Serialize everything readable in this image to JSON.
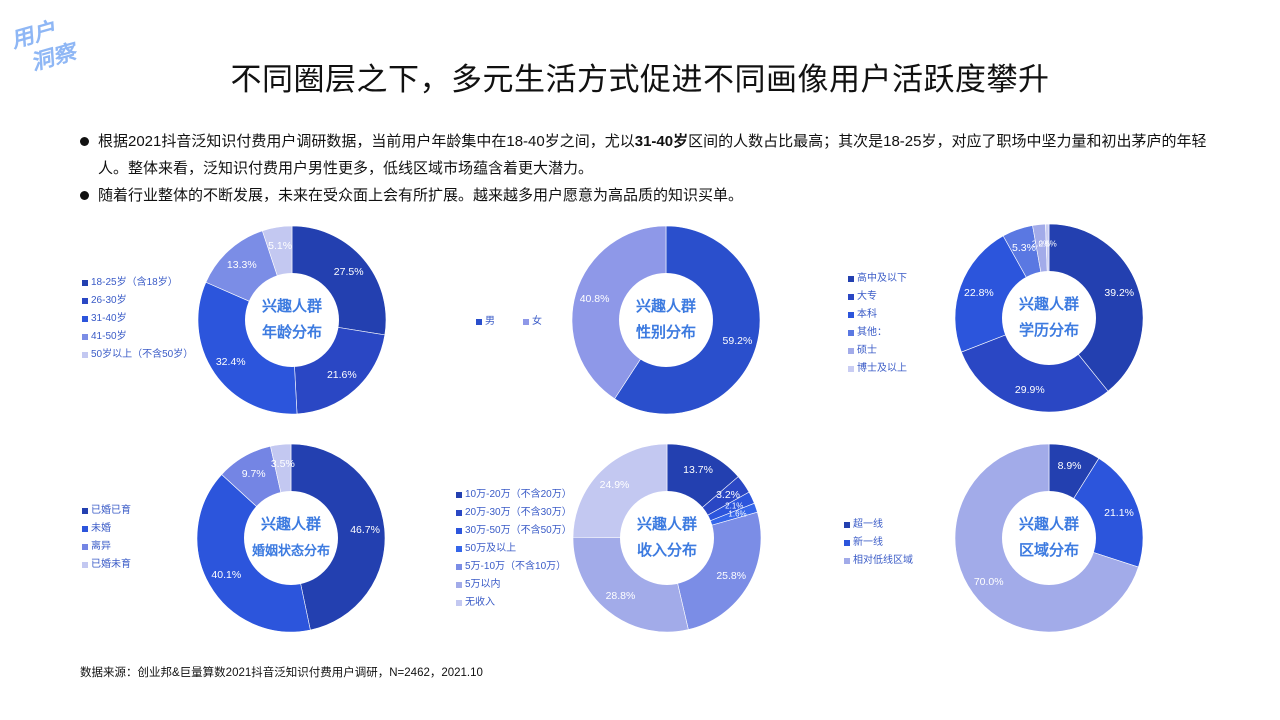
{
  "badge": {
    "line1": "用户",
    "line2": "洞察"
  },
  "title": "不同圈层之下，多元生活方式促进不同画像用户活跃度攀升",
  "bullets": [
    {
      "pre": "根据2021抖音泛知识付费用户调研数据，当前用户年龄集中在18-40岁之间，尤以",
      "bold": "31-40岁",
      "post": "区间的人数占比最高；其次是18-25岁，对应了职场中坚力量和初出茅庐的年轻人。整体来看，泛知识付费用户男性更多，低线区域市场蕴含着更大潜力。"
    },
    {
      "pre": "随着行业整体的不断发展，未来在受众面上会有所扩展。越来越多用户愿意为高品质的知识买单。",
      "bold": "",
      "post": ""
    }
  ],
  "source": "数据来源：创业邦&巨量算数2021抖音泛知识付费用户调研，N=2462，2021.10",
  "colors": {
    "c1": "#2340b0",
    "c2": "#2a47c4",
    "c3": "#2c55dc",
    "c4": "#4a6ee6",
    "c5": "#7b8de6",
    "c6": "#a2abe9",
    "c7": "#c3c8f1",
    "center_text": "#3d7be0",
    "legend_text": "#3a5bc7"
  },
  "chart_data": [
    {
      "type": "pie",
      "title": "兴趣人群 年龄分布",
      "center_line1": "兴趣人群",
      "center_line2": "年龄分布",
      "categories": [
        "18-25岁（含18岁）",
        "26-30岁",
        "31-40岁",
        "41-50岁",
        "50岁以上（不含50岁）"
      ],
      "values": [
        27.5,
        21.6,
        32.4,
        13.3,
        5.1
      ],
      "labels": [
        "27.5%",
        "21.6%",
        "32.4%",
        "13.3%",
        "5.1%"
      ],
      "colors": [
        "#2340b0",
        "#2a47c4",
        "#2c55dc",
        "#7b8de6",
        "#c3c8f1"
      ],
      "legend_position": "left"
    },
    {
      "type": "pie",
      "title": "兴趣人群 性别分布",
      "center_line1": "兴趣人群",
      "center_line2": "性别分布",
      "categories": [
        "男",
        "女"
      ],
      "values": [
        59.2,
        40.8
      ],
      "labels": [
        "59.2%",
        "40.8%"
      ],
      "colors": [
        "#2a4fcc",
        "#8e98e8"
      ],
      "legend_position": "left"
    },
    {
      "type": "pie",
      "title": "兴趣人群 学历分布",
      "center_line1": "兴趣人群",
      "center_line2": "学历分布",
      "categories": [
        "高中及以下",
        "大专",
        "本科",
        "其他：",
        "硕士",
        "博士及以上"
      ],
      "values": [
        39.2,
        29.9,
        22.8,
        5.3,
        2.2,
        0.6
      ],
      "labels": [
        "39.2%",
        "29.9%",
        "22.8%",
        "5.3%",
        "2.2%",
        "0.6%"
      ],
      "colors": [
        "#2340b0",
        "#2a47c4",
        "#2c55dc",
        "#5a78e2",
        "#a2abe9",
        "#c9cdf3"
      ],
      "legend_position": "left"
    },
    {
      "type": "pie",
      "title": "兴趣人群 婚姻状态分布",
      "center_line1": "兴趣人群",
      "center_line2": "婚姻状态分布",
      "categories": [
        "已婚已育",
        "未婚",
        "离异",
        "已婚未育"
      ],
      "values": [
        46.7,
        40.1,
        9.7,
        3.5
      ],
      "labels": [
        "46.7%",
        "40.1%",
        "9.7%",
        "3.5%"
      ],
      "colors": [
        "#2340b0",
        "#2c55dc",
        "#7485e4",
        "#c3c8f1"
      ],
      "legend_position": "left"
    },
    {
      "type": "pie",
      "title": "兴趣人群 收入分布",
      "center_line1": "兴趣人群",
      "center_line2": "收入分布",
      "categories": [
        "10万-20万（不含20万）",
        "20万-30万（不含30万）",
        "30万-50万（不含50万）",
        "50万及以上",
        "5万-10万（不含10万）",
        "5万以内",
        "无收入"
      ],
      "values": [
        13.7,
        3.2,
        2.1,
        1.6,
        25.8,
        28.8,
        24.9
      ],
      "labels": [
        "13.7%",
        "3.2%",
        "2.1%",
        "1.6%",
        "25.8%",
        "28.8%",
        "24.9%"
      ],
      "colors": [
        "#2340b0",
        "#2a47c4",
        "#2c55dc",
        "#3566ea",
        "#7b8de6",
        "#a2abe9",
        "#c3c8f1"
      ],
      "legend_position": "left"
    },
    {
      "type": "pie",
      "title": "兴趣人群 区域分布",
      "center_line1": "兴趣人群",
      "center_line2": "区域分布",
      "categories": [
        "超一线",
        "新一线",
        "相对低线区域"
      ],
      "values": [
        8.9,
        21.1,
        70.0
      ],
      "labels": [
        "8.9%",
        "21.1%",
        "70.0%"
      ],
      "colors": [
        "#2340b0",
        "#2c55dc",
        "#a2abe9"
      ],
      "legend_position": "left"
    }
  ]
}
